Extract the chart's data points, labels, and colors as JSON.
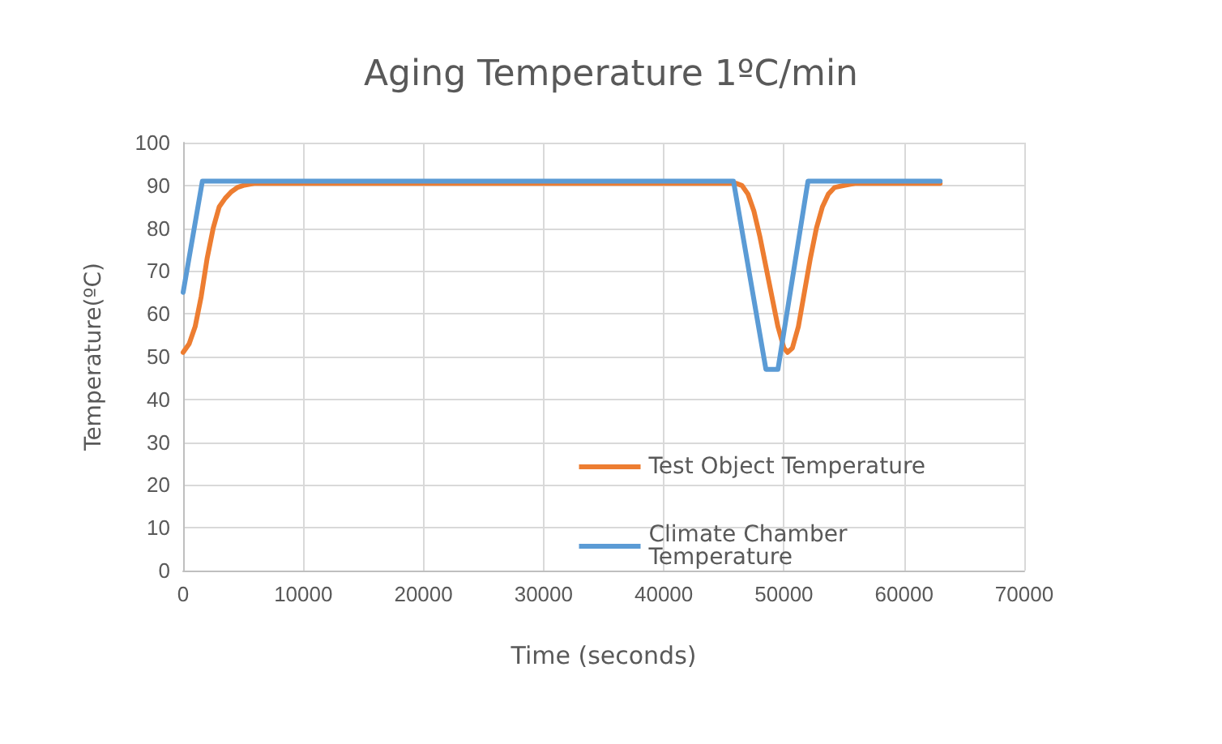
{
  "chart_data": {
    "type": "line",
    "title": "Aging Temperature 1ºC/min",
    "xlabel": "Time (seconds)",
    "ylabel": "Temperature(ºC)",
    "xlim": [
      0,
      70000
    ],
    "xticks": [
      0,
      10000,
      20000,
      30000,
      40000,
      50000,
      60000,
      70000
    ],
    "ylim": [
      0,
      100
    ],
    "yticks": [
      0,
      10,
      20,
      30,
      40,
      50,
      60,
      70,
      80,
      90,
      100
    ],
    "grid": true,
    "legend": "bottom right",
    "marker": "none",
    "line_style": "solid",
    "series": [
      {
        "name": "Test Object Temperature",
        "color": "#ed7d31",
        "x": [
          0,
          500,
          1000,
          1500,
          2000,
          2500,
          3000,
          3500,
          4000,
          4500,
          5000,
          6000,
          46000,
          46500,
          47000,
          47500,
          48000,
          48500,
          49000,
          49500,
          50000,
          50300,
          50700,
          51200,
          51700,
          52200,
          52700,
          53200,
          53700,
          54200,
          55000,
          56000,
          63000
        ],
        "values": [
          51,
          53,
          57,
          64,
          73,
          80,
          85,
          87,
          88.5,
          89.5,
          90,
          90.5,
          90.5,
          90,
          88,
          84,
          78,
          71,
          64,
          57,
          52,
          51,
          52,
          57,
          65,
          73,
          80,
          85,
          88,
          89.5,
          90,
          90.5,
          90.5
        ]
      },
      {
        "name": "Climate Chamber Temperature",
        "color": "#5b9bd5",
        "x": [
          0,
          1600,
          45800,
          48500,
          49500,
          52000,
          63000
        ],
        "values": [
          65,
          91,
          91,
          47,
          47,
          91,
          91
        ]
      }
    ]
  }
}
